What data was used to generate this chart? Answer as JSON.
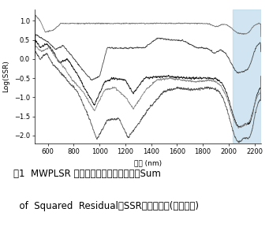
{
  "xlabel": "波長 (nm)",
  "ylabel": "Log(SSR)",
  "xlim": [
    500,
    2250
  ],
  "ylim": [
    -2.2,
    1.3
  ],
  "yticks": [
    1,
    0.5,
    0,
    -0.5,
    -1,
    -1.5,
    -2
  ],
  "xticks": [
    600,
    800,
    1000,
    1200,
    1400,
    1600,
    1800,
    2000,
    2200
  ],
  "highlight_xmin": 2030,
  "highlight_xmax": 2250,
  "highlight_color": "#b8d8ea",
  "highlight_alpha": 0.65,
  "line_colors": [
    "#777777",
    "#444444",
    "#222222",
    "#555555",
    "#888888"
  ],
  "figsize": [
    3.41,
    2.93
  ],
  "dpi": 100,
  "bg_color": "#ffffff",
  "caption_line1": "図1  MWPLSR 法による波長領域に対するSum",
  "caption_line2": "  of  Squared  Residual（SSR）プロット(二次微分)"
}
